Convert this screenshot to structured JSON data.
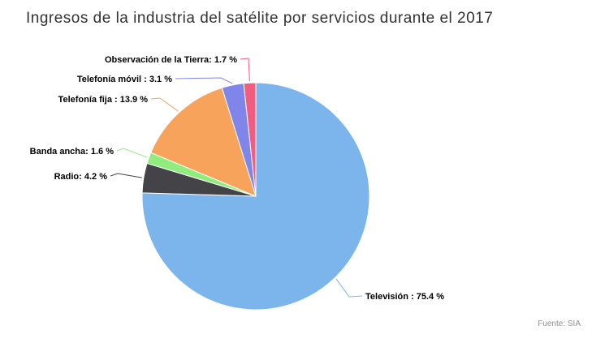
{
  "chart_data": {
    "type": "pie",
    "title": "Ingresos de la industria del satélite por servicios durante el 2017",
    "source": "Fuente: SIA",
    "unit": "%",
    "slices": [
      {
        "name": "Televisión",
        "value": 75.4,
        "label": "Televisión : 75.4 %",
        "color": "#7cb5ec"
      },
      {
        "name": "Radio",
        "value": 4.2,
        "label": "Radio: 4.2 %",
        "color": "#434348"
      },
      {
        "name": "Banda ancha",
        "value": 1.6,
        "label": "Banda ancha: 1.6 %",
        "color": "#90ed7d"
      },
      {
        "name": "Telefonía fija",
        "value": 13.9,
        "label": "Telefonía fija : 13.9 %",
        "color": "#f7a35c"
      },
      {
        "name": "Telefonía móvil",
        "value": 3.1,
        "label": "Telefonía móvil : 3.1 %",
        "color": "#8085e9"
      },
      {
        "name": "Observación de la Tierra",
        "value": 1.7,
        "label": "Observación de la Tierra: 1.7 %",
        "color": "#f15c80"
      }
    ]
  }
}
